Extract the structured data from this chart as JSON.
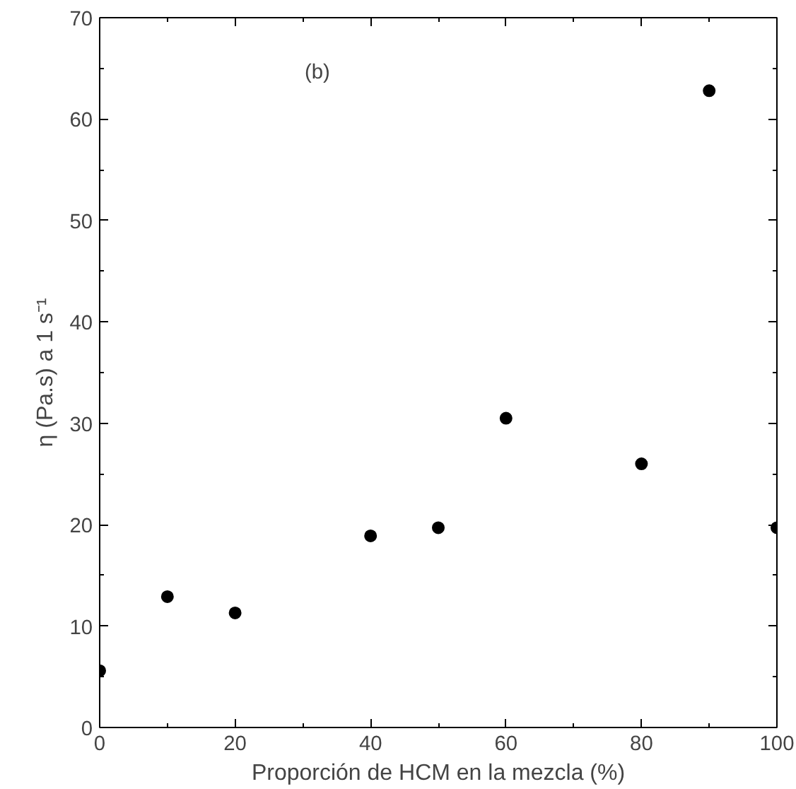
{
  "chart_data": {
    "type": "scatter",
    "xlabel": "Proporción de HCM en la mezcla (%)",
    "ylabel": "η (Pa.s) a 1 s⁻¹",
    "annotations": [
      "(b)"
    ],
    "x": [
      0,
      10,
      20,
      40,
      50,
      60,
      80,
      90,
      100
    ],
    "series": [
      {
        "color": "#000000",
        "values": [
          5.6,
          12.9,
          11.3,
          18.9,
          19.7,
          30.5,
          26.0,
          62.8,
          19.7
        ]
      }
    ],
    "xlim": [
      0,
      100
    ],
    "ylim": [
      0,
      70
    ],
    "xticks": [
      0,
      20,
      40,
      60,
      80,
      100
    ],
    "yticks": [
      0,
      10,
      20,
      30,
      40,
      50,
      60,
      70
    ],
    "marker": "circle",
    "grid": false
  }
}
